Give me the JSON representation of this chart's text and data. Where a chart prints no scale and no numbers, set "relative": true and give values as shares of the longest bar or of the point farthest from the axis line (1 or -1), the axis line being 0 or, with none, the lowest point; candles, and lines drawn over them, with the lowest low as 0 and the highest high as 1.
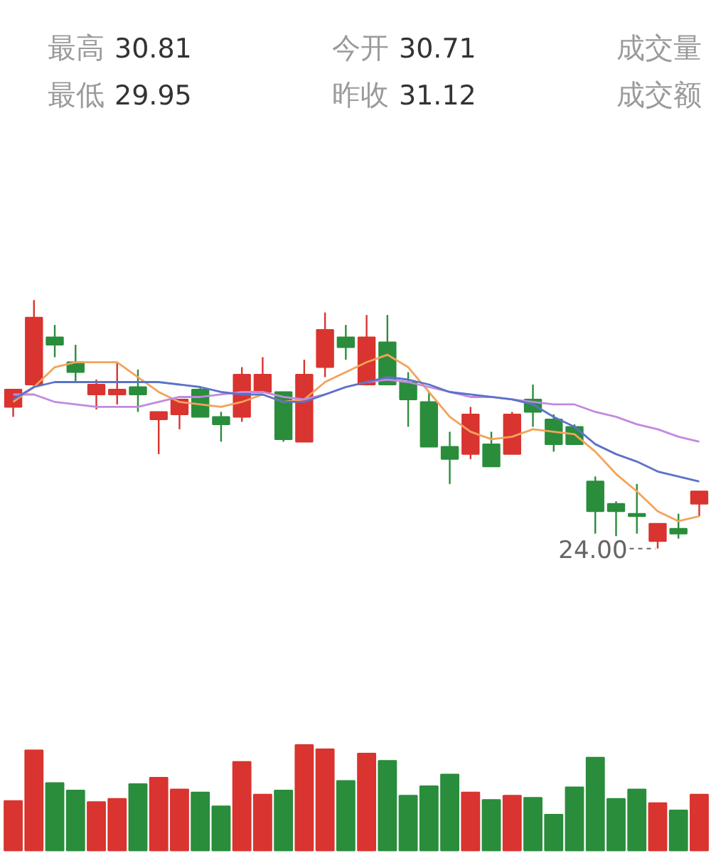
{
  "chart_data": [
    {
      "type": "other",
      "annotations": [
        "最高 30.81",
        "今开 30.71",
        "成交量",
        "最低 29.95",
        "昨收 31.12",
        "成交额"
      ]
    },
    {
      "type": "candlestick",
      "relative": true,
      "categories": [
        null,
        null,
        null,
        null,
        null,
        null,
        null,
        null,
        null,
        null,
        null,
        null,
        null,
        null,
        null,
        null,
        null,
        null,
        null,
        null,
        null,
        null,
        null,
        null,
        null,
        null,
        null,
        null,
        null,
        null,
        null,
        null,
        null,
        null
      ],
      "ohlc": [
        [
          0.57,
          0.64,
          0.53,
          0.64
        ],
        [
          0.66,
          1.0,
          0.65,
          0.93
        ],
        [
          0.85,
          0.9,
          0.77,
          0.82
        ],
        [
          0.75,
          0.82,
          0.67,
          0.71
        ],
        [
          0.62,
          0.68,
          0.56,
          0.66
        ],
        [
          0.62,
          0.75,
          0.58,
          0.64
        ],
        [
          0.65,
          0.72,
          0.55,
          0.62
        ],
        [
          0.52,
          0.55,
          0.38,
          0.55
        ],
        [
          0.54,
          0.6,
          0.48,
          0.6
        ],
        [
          0.64,
          0.65,
          0.53,
          0.53
        ],
        [
          0.53,
          0.55,
          0.43,
          0.5
        ],
        [
          0.53,
          0.73,
          0.51,
          0.7
        ],
        [
          0.63,
          0.77,
          0.63,
          0.7
        ],
        [
          0.63,
          0.63,
          0.43,
          0.44
        ],
        [
          0.43,
          0.76,
          0.43,
          0.7
        ],
        [
          0.73,
          0.95,
          0.69,
          0.88
        ],
        [
          0.85,
          0.9,
          0.76,
          0.81
        ],
        [
          0.66,
          0.94,
          0.66,
          0.85
        ],
        [
          0.83,
          0.94,
          0.66,
          0.66
        ],
        [
          0.67,
          0.71,
          0.49,
          0.6
        ],
        [
          0.59,
          0.63,
          0.41,
          0.41
        ],
        [
          0.41,
          0.47,
          0.26,
          0.36
        ],
        [
          0.38,
          0.57,
          0.36,
          0.54
        ],
        [
          0.42,
          0.47,
          0.33,
          0.33
        ],
        [
          0.38,
          0.55,
          0.38,
          0.54
        ],
        [
          0.6,
          0.66,
          0.49,
          0.55
        ],
        [
          0.52,
          0.54,
          0.39,
          0.42
        ],
        [
          0.49,
          0.5,
          0.42,
          0.42
        ],
        [
          0.27,
          0.29,
          0.06,
          0.15
        ],
        [
          0.18,
          0.19,
          0.05,
          0.15
        ],
        [
          0.14,
          0.26,
          0.06,
          0.13
        ],
        [
          0.03,
          0.1,
          0.0,
          0.1
        ],
        [
          0.08,
          0.14,
          0.04,
          0.06
        ],
        [
          0.18,
          0.23,
          0.13,
          0.23
        ]
      ],
      "colors": [
        "#d9342f",
        "#d9342f",
        "#2a8d3c",
        "#2a8d3c",
        "#d9342f",
        "#d9342f",
        "#2a8d3c",
        "#d9342f",
        "#d9342f",
        "#2a8d3c",
        "#2a8d3c",
        "#d9342f",
        "#d9342f",
        "#2a8d3c",
        "#d9342f",
        "#d9342f",
        "#2a8d3c",
        "#d9342f",
        "#2a8d3c",
        "#2a8d3c",
        "#2a8d3c",
        "#2a8d3c",
        "#d9342f",
        "#2a8d3c",
        "#d9342f",
        "#2a8d3c",
        "#2a8d3c",
        "#2a8d3c",
        "#2a8d3c",
        "#2a8d3c",
        "#2a8d3c",
        "#d9342f",
        "#2a8d3c",
        "#d9342f"
      ],
      "series": [
        {
          "type": "line",
          "color": "#f3a35a",
          "values": [
            0.59,
            0.65,
            0.73,
            0.75,
            0.75,
            0.75,
            0.69,
            0.63,
            0.59,
            0.58,
            0.57,
            0.59,
            0.62,
            0.59,
            0.6,
            0.67,
            0.71,
            0.75,
            0.78,
            0.73,
            0.63,
            0.53,
            0.47,
            0.44,
            0.45,
            0.48,
            0.47,
            0.46,
            0.39,
            0.3,
            0.23,
            0.15,
            0.11,
            0.13
          ]
        },
        {
          "type": "line",
          "color": "#c28ade",
          "values": [
            0.62,
            0.62,
            0.59,
            0.58,
            0.57,
            0.57,
            0.57,
            0.59,
            0.61,
            0.61,
            0.62,
            0.63,
            0.63,
            0.61,
            0.6,
            0.62,
            0.65,
            0.67,
            0.68,
            0.67,
            0.65,
            0.63,
            0.61,
            0.61,
            0.6,
            0.59,
            0.58,
            0.58,
            0.55,
            0.53,
            0.5,
            0.48,
            0.45,
            0.43
          ]
        },
        {
          "type": "line",
          "color": "#5b72c8",
          "values": [
            0.6,
            0.65,
            0.67,
            0.67,
            0.67,
            0.67,
            0.67,
            0.67,
            0.66,
            0.65,
            0.63,
            0.62,
            0.62,
            0.59,
            0.59,
            0.62,
            0.65,
            0.67,
            0.69,
            0.68,
            0.66,
            0.63,
            0.62,
            0.61,
            0.6,
            0.58,
            0.53,
            0.49,
            0.42,
            0.38,
            0.35,
            0.31,
            0.29,
            0.27
          ]
        }
      ],
      "annotations": [
        "24.00"
      ]
    },
    {
      "type": "bar",
      "relative": true,
      "categories": [
        null,
        null,
        null,
        null,
        null,
        null,
        null,
        null,
        null,
        null,
        null,
        null,
        null,
        null,
        null,
        null,
        null,
        null,
        null,
        null,
        null,
        null,
        null,
        null,
        null,
        null,
        null,
        null,
        null,
        null,
        null,
        null,
        null,
        null
      ],
      "values": [
        0.47,
        0.95,
        0.64,
        0.57,
        0.46,
        0.49,
        0.63,
        0.69,
        0.58,
        0.55,
        0.42,
        0.84,
        0.53,
        0.57,
        1.0,
        0.96,
        0.66,
        0.92,
        0.85,
        0.52,
        0.61,
        0.72,
        0.55,
        0.48,
        0.52,
        0.5,
        0.34,
        0.6,
        0.88,
        0.49,
        0.58,
        0.45,
        0.38,
        0.53
      ],
      "colors": [
        "#d9342f",
        "#d9342f",
        "#2a8d3c",
        "#2a8d3c",
        "#d9342f",
        "#d9342f",
        "#2a8d3c",
        "#d9342f",
        "#d9342f",
        "#2a8d3c",
        "#2a8d3c",
        "#d9342f",
        "#d9342f",
        "#2a8d3c",
        "#d9342f",
        "#d9342f",
        "#2a8d3c",
        "#d9342f",
        "#2a8d3c",
        "#2a8d3c",
        "#2a8d3c",
        "#2a8d3c",
        "#d9342f",
        "#2a8d3c",
        "#d9342f",
        "#2a8d3c",
        "#2a8d3c",
        "#2a8d3c",
        "#2a8d3c",
        "#2a8d3c",
        "#2a8d3c",
        "#d9342f",
        "#2a8d3c",
        "#d9342f"
      ]
    }
  ]
}
